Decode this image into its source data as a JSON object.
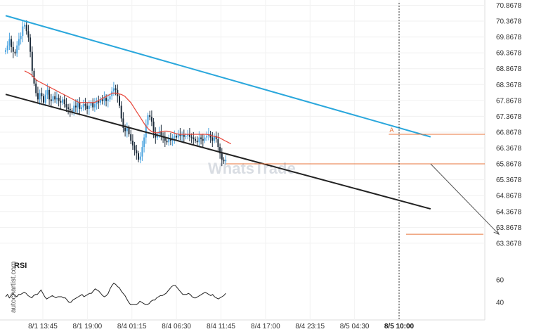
{
  "watermark": "WhatsTrade",
  "brand": "autochartist.com",
  "rsi_label": "RSI",
  "pattern_label": "A",
  "chart_data": {
    "type": "line",
    "title": "",
    "xlabel": "",
    "ylabel": "",
    "ylim": [
      63.1,
      70.9
    ],
    "y_ticks": [
      "70.8678",
      "70.3678",
      "69.8678",
      "69.3678",
      "68.8678",
      "68.3678",
      "67.8678",
      "67.3678",
      "66.8678",
      "66.3678",
      "65.8678",
      "65.3678",
      "64.8678",
      "64.3678",
      "63.8678",
      "63.3678"
    ],
    "x_ticks": [
      "8/1 13:45",
      "8/1 19:00",
      "8/4 01:15",
      "8/4 06:30",
      "8/4 11:45",
      "8/4 17:00",
      "8/4 23:15",
      "8/5 04:30",
      "8/5 10:00"
    ],
    "x_tick_bold": "8/5 10:00",
    "candle_step": 2.7,
    "colors": {
      "up": "#4aa3df",
      "down": "#1c2b3a",
      "resistance": "#2aa7dc",
      "support": "#222222",
      "ma": "#e8463a",
      "level": "#e8743b",
      "arrow": "#555555",
      "rsi": "#222222",
      "now": "#333333"
    },
    "close": [
      69.45,
      69.6,
      69.8,
      69.55,
      69.4,
      69.35,
      69.6,
      69.8,
      69.9,
      70.2,
      70.25,
      70.05,
      69.85,
      69.4,
      68.8,
      68.4,
      68.1,
      67.9,
      68.1,
      68.0,
      67.8,
      68.05,
      68.2,
      67.9,
      67.85,
      68.0,
      67.9,
      67.95,
      67.85,
      67.8,
      67.9,
      67.75,
      67.65,
      67.6,
      67.55,
      67.5,
      67.7,
      67.65,
      67.8,
      67.6,
      67.65,
      67.75,
      67.7,
      67.6,
      67.7,
      67.8,
      67.65,
      67.75,
      67.85,
      67.8,
      67.9,
      67.85,
      67.95,
      67.85,
      67.9,
      68.0,
      68.15,
      68.25,
      68.2,
      68.0,
      67.7,
      67.3,
      67.0,
      66.9,
      67.0,
      66.8,
      66.6,
      66.45,
      66.3,
      66.2,
      66.0,
      66.1,
      66.4,
      66.7,
      67.1,
      67.4,
      67.35,
      67.2,
      66.85,
      66.7,
      66.8,
      66.9,
      66.75,
      66.7,
      66.6,
      66.55,
      66.65,
      66.6,
      66.7,
      66.75,
      66.7,
      66.8,
      66.75,
      66.78,
      66.72,
      66.75,
      66.8,
      66.72,
      66.7,
      66.65,
      66.6,
      66.55,
      66.7,
      66.65,
      66.6,
      66.7,
      66.75,
      66.8,
      66.7,
      66.6,
      66.75,
      66.65,
      66.4,
      66.2,
      66.0,
      65.95,
      66.0
    ],
    "ma": [
      68.8,
      68.75,
      68.7,
      68.6,
      68.5,
      68.45,
      68.4,
      68.35,
      68.3,
      68.25,
      68.2,
      68.15,
      68.1,
      68.05,
      68.0,
      67.95,
      67.9,
      67.85,
      67.8,
      67.8,
      67.8,
      67.8,
      67.8,
      67.8,
      67.85,
      67.9,
      67.95,
      68.0,
      68.05,
      68.1,
      68.1,
      68.08,
      68.05,
      68.0,
      67.9,
      67.8,
      67.65,
      67.5,
      67.35,
      67.2,
      67.05,
      66.95,
      66.88,
      66.85,
      66.85,
      66.88,
      66.9,
      66.9,
      66.88,
      66.85,
      66.82,
      66.8,
      66.8,
      66.8,
      66.8,
      66.8,
      66.8,
      66.8,
      66.8,
      66.8,
      66.8,
      66.78,
      66.75,
      66.72,
      66.7,
      66.65,
      66.6,
      66.55,
      66.5
    ],
    "resistance": [
      [
        0,
        70.54
      ],
      [
        224,
        66.72
      ]
    ],
    "support": [
      [
        0,
        68.06
      ],
      [
        224,
        64.45
      ]
    ],
    "ma_start": 10,
    "pattern_level": 66.8,
    "breakout_level": 65.87,
    "target_level": 63.65,
    "projection": [
      [
        224,
        65.87
      ],
      [
        260,
        63.65
      ]
    ],
    "rsi": {
      "ylim": [
        30,
        70
      ],
      "ticks": [
        "60",
        "40"
      ],
      "values": [
        45,
        47,
        44,
        46,
        48,
        46,
        45,
        47,
        47,
        48,
        49,
        48,
        46,
        45,
        44,
        46,
        47,
        47,
        49,
        51,
        48,
        45,
        43,
        44,
        45,
        46,
        45,
        44,
        45,
        45,
        45,
        44,
        44,
        42,
        40,
        40,
        42,
        43,
        44,
        45,
        46,
        47,
        45,
        46,
        47,
        48,
        48,
        50,
        52,
        51,
        50,
        48,
        46,
        45,
        46,
        48,
        52,
        55,
        57,
        56,
        54,
        53,
        50,
        48,
        46,
        43,
        40,
        38,
        38,
        38,
        38,
        39,
        41,
        40,
        39,
        38,
        38,
        39,
        41,
        42,
        42,
        44,
        45,
        46,
        46,
        47,
        48,
        50,
        52,
        54,
        55,
        55,
        53,
        51,
        49,
        47,
        47,
        47,
        48,
        47,
        45,
        44,
        44,
        45,
        46,
        47,
        48,
        49,
        48,
        47,
        46,
        47,
        45,
        44,
        43,
        44,
        45,
        46,
        48
      ]
    }
  }
}
